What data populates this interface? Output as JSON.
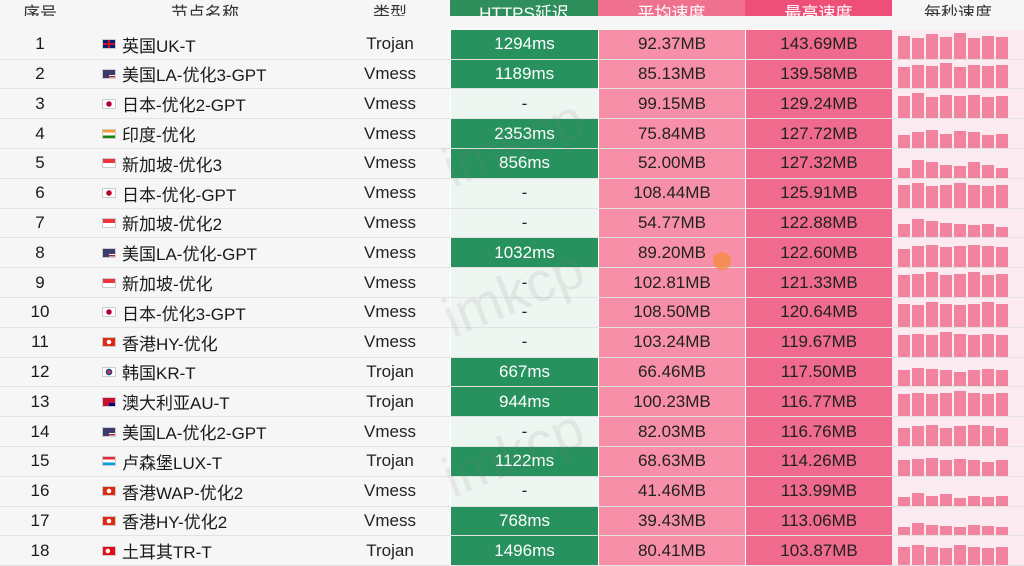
{
  "header": {
    "index": "序号",
    "node": "节点名称",
    "type": "类型",
    "latency": "HTTPS延迟",
    "avg": "平均速度",
    "max": "最高速度",
    "per_second": "每秒速度"
  },
  "rows": [
    {
      "index": "1",
      "flag": "gb-flag-icon",
      "node": "英国UK-T",
      "type": "Trojan",
      "latency": "1294ms",
      "avg": "92.37MB",
      "max": "143.69MB",
      "spark": [
        0.9,
        0.8,
        0.95,
        0.85,
        1.0,
        0.8,
        0.9,
        0.85
      ]
    },
    {
      "index": "2",
      "flag": "us-flag-icon",
      "node": "美国LA-优化3-GPT",
      "type": "Vmess",
      "latency": "1189ms",
      "avg": "85.13MB",
      "max": "139.58MB",
      "spark": [
        0.8,
        0.9,
        0.85,
        0.95,
        0.8,
        0.9,
        0.85,
        0.9
      ]
    },
    {
      "index": "3",
      "flag": "jp-flag-icon",
      "node": "日本-优化2-GPT",
      "type": "Vmess",
      "latency": "-",
      "avg": "99.15MB",
      "max": "129.24MB",
      "spark": [
        0.85,
        0.95,
        0.8,
        0.9,
        0.85,
        0.9,
        0.8,
        0.85
      ]
    },
    {
      "index": "4",
      "flag": "in-flag-icon",
      "node": "印度-优化",
      "type": "Vmess",
      "latency": "2353ms",
      "avg": "75.84MB",
      "max": "127.72MB",
      "spark": [
        0.5,
        0.6,
        0.7,
        0.55,
        0.65,
        0.6,
        0.5,
        0.55
      ]
    },
    {
      "index": "5",
      "flag": "sg-flag-icon",
      "node": "新加坡-优化3",
      "type": "Vmess",
      "latency": "856ms",
      "avg": "52.00MB",
      "max": "127.32MB",
      "spark": [
        0.4,
        0.7,
        0.6,
        0.5,
        0.45,
        0.6,
        0.5,
        0.4
      ]
    },
    {
      "index": "6",
      "flag": "jp-flag-icon",
      "node": "日本-优化-GPT",
      "type": "Vmess",
      "latency": "-",
      "avg": "108.44MB",
      "max": "125.91MB",
      "spark": [
        0.9,
        0.95,
        0.85,
        0.9,
        0.95,
        0.9,
        0.85,
        0.9
      ]
    },
    {
      "index": "7",
      "flag": "sg-flag-icon",
      "node": "新加坡-优化2",
      "type": "Vmess",
      "latency": "-",
      "avg": "54.77MB",
      "max": "122.88MB",
      "spark": [
        0.5,
        0.7,
        0.6,
        0.55,
        0.5,
        0.45,
        0.5,
        0.4
      ]
    },
    {
      "index": "8",
      "flag": "us-flag-icon",
      "node": "美国LA-优化-GPT",
      "type": "Vmess",
      "latency": "1032ms",
      "avg": "89.20MB",
      "max": "122.60MB",
      "spark": [
        0.7,
        0.8,
        0.85,
        0.75,
        0.8,
        0.85,
        0.8,
        0.75
      ]
    },
    {
      "index": "9",
      "flag": "sg-flag-icon",
      "node": "新加坡-优化",
      "type": "Vmess",
      "latency": "-",
      "avg": "102.81MB",
      "max": "121.33MB",
      "spark": [
        0.85,
        0.9,
        0.95,
        0.85,
        0.9,
        0.95,
        0.85,
        0.9
      ]
    },
    {
      "index": "10",
      "flag": "jp-flag-icon",
      "node": "日本-优化3-GPT",
      "type": "Vmess",
      "latency": "-",
      "avg": "108.50MB",
      "max": "120.64MB",
      "spark": [
        0.9,
        0.85,
        0.95,
        0.9,
        0.85,
        0.9,
        0.95,
        0.9
      ]
    },
    {
      "index": "11",
      "flag": "hk-flag-icon",
      "node": "香港HY-优化",
      "type": "Vmess",
      "latency": "-",
      "avg": "103.24MB",
      "max": "119.67MB",
      "spark": [
        0.85,
        0.9,
        0.85,
        0.95,
        0.9,
        0.85,
        0.9,
        0.85
      ]
    },
    {
      "index": "12",
      "flag": "kr-flag-icon",
      "node": "韩国KR-T",
      "type": "Trojan",
      "latency": "667ms",
      "avg": "66.46MB",
      "max": "117.50MB",
      "spark": [
        0.6,
        0.7,
        0.65,
        0.6,
        0.55,
        0.6,
        0.65,
        0.6
      ]
    },
    {
      "index": "13",
      "flag": "au-flag-icon",
      "node": "澳大利亚AU-T",
      "type": "Trojan",
      "latency": "944ms",
      "avg": "100.23MB",
      "max": "116.77MB",
      "spark": [
        0.85,
        0.9,
        0.85,
        0.9,
        0.95,
        0.9,
        0.85,
        0.9
      ]
    },
    {
      "index": "14",
      "flag": "us-flag-icon",
      "node": "美国LA-优化2-GPT",
      "type": "Vmess",
      "latency": "-",
      "avg": "82.03MB",
      "max": "116.76MB",
      "spark": [
        0.7,
        0.75,
        0.8,
        0.7,
        0.75,
        0.8,
        0.75,
        0.7
      ]
    },
    {
      "index": "15",
      "flag": "lu-flag-icon",
      "node": "卢森堡LUX-T",
      "type": "Trojan",
      "latency": "1122ms",
      "avg": "68.63MB",
      "max": "114.26MB",
      "spark": [
        0.6,
        0.65,
        0.7,
        0.6,
        0.65,
        0.6,
        0.55,
        0.6
      ]
    },
    {
      "index": "16",
      "flag": "hk-flag-icon",
      "node": "香港WAP-优化2",
      "type": "Vmess",
      "latency": "-",
      "avg": "41.46MB",
      "max": "113.99MB",
      "spark": [
        0.35,
        0.5,
        0.4,
        0.45,
        0.3,
        0.4,
        0.35,
        0.4
      ]
    },
    {
      "index": "17",
      "flag": "hk-flag-icon",
      "node": "香港HY-优化2",
      "type": "Vmess",
      "latency": "768ms",
      "avg": "39.43MB",
      "max": "113.06MB",
      "spark": [
        0.3,
        0.45,
        0.4,
        0.35,
        0.3,
        0.4,
        0.35,
        0.3
      ]
    },
    {
      "index": "18",
      "flag": "tr-flag-icon",
      "node": "土耳其TR-T",
      "type": "Trojan",
      "latency": "1496ms",
      "avg": "80.41MB",
      "max": "103.87MB",
      "spark": [
        0.7,
        0.75,
        0.7,
        0.65,
        0.75,
        0.7,
        0.65,
        0.7
      ]
    }
  ],
  "watermark": "imkcp",
  "colors": {
    "latency_green": "#27925e",
    "latency_empty": "#eef6f2",
    "avg_pink": "#f78fa8",
    "max_pink": "#f06a8e",
    "spark_pink": "#f2839f"
  }
}
